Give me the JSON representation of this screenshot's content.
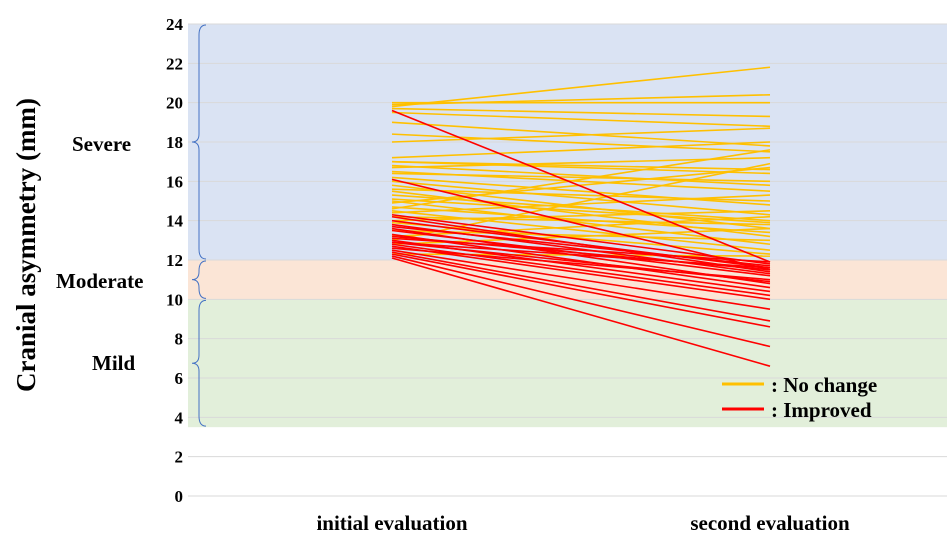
{
  "chart_data": {
    "type": "line",
    "ylabel": "Cranial asymmetry (mm)",
    "categories": [
      "initial evaluation",
      "second evaluation"
    ],
    "ylim": [
      0,
      24
    ],
    "yticks": [
      "0",
      "2",
      "4",
      "6",
      "8",
      "10",
      "12",
      "14",
      "16",
      "18",
      "20",
      "22",
      "24"
    ],
    "grid": true,
    "legend_position": "bottom-right",
    "bands": [
      {
        "label": "Severe",
        "range": [
          12,
          24
        ],
        "color": "#dae3f3"
      },
      {
        "label": "Moderate",
        "range": [
          10,
          12
        ],
        "color": "#fbe5d6"
      },
      {
        "label": "Mild",
        "range": [
          3.5,
          10
        ],
        "color": "#e2efda"
      }
    ],
    "series": [
      {
        "name": ": No change",
        "color": "#ffc000",
        "lines": [
          [
            19.8,
            21.8
          ],
          [
            19.9,
            20.4
          ],
          [
            20.0,
            20.0
          ],
          [
            19.7,
            19.3
          ],
          [
            19.5,
            18.8
          ],
          [
            18.0,
            18.7
          ],
          [
            19.0,
            17.8
          ],
          [
            18.4,
            17.5
          ],
          [
            17.2,
            18.0
          ],
          [
            17.0,
            16.6
          ],
          [
            17.0,
            16.4
          ],
          [
            16.8,
            15.8
          ],
          [
            16.7,
            17.2
          ],
          [
            16.5,
            15.5
          ],
          [
            16.4,
            16.0
          ],
          [
            16.2,
            14.8
          ],
          [
            16.0,
            14.3
          ],
          [
            15.8,
            13.6
          ],
          [
            15.6,
            15.0
          ],
          [
            15.5,
            13.2
          ],
          [
            15.3,
            14.0
          ],
          [
            15.0,
            12.8
          ],
          [
            14.9,
            16.7
          ],
          [
            14.7,
            13.4
          ],
          [
            14.5,
            12.5
          ],
          [
            14.4,
            15.3
          ],
          [
            14.2,
            13.8
          ],
          [
            14.0,
            14.5
          ],
          [
            13.9,
            12.3
          ],
          [
            13.5,
            13.0
          ],
          [
            13.2,
            14.2
          ],
          [
            12.8,
            13.6
          ],
          [
            12.3,
            12.2
          ],
          [
            13.0,
            16.9
          ],
          [
            14.6,
            17.6
          ],
          [
            15.1,
            13.9
          ]
        ]
      },
      {
        "name": ": Improved",
        "color": "#ff0000",
        "lines": [
          [
            19.6,
            11.9
          ],
          [
            16.1,
            11.5
          ],
          [
            14.3,
            11.8
          ],
          [
            14.2,
            11.4
          ],
          [
            14.0,
            11.6
          ],
          [
            13.8,
            11.3
          ],
          [
            13.7,
            11.7
          ],
          [
            13.6,
            10.8
          ],
          [
            13.5,
            11.2
          ],
          [
            13.3,
            10.6
          ],
          [
            13.2,
            11.5
          ],
          [
            13.0,
            10.4
          ],
          [
            12.9,
            10.9
          ],
          [
            12.8,
            10.2
          ],
          [
            12.7,
            10.0
          ],
          [
            12.6,
            11.0
          ],
          [
            12.5,
            9.5
          ],
          [
            12.4,
            8.9
          ],
          [
            12.3,
            8.6
          ],
          [
            12.2,
            7.6
          ],
          [
            12.1,
            6.6
          ],
          [
            13.1,
            11.9
          ],
          [
            12.9,
            11.6
          ]
        ]
      }
    ]
  }
}
